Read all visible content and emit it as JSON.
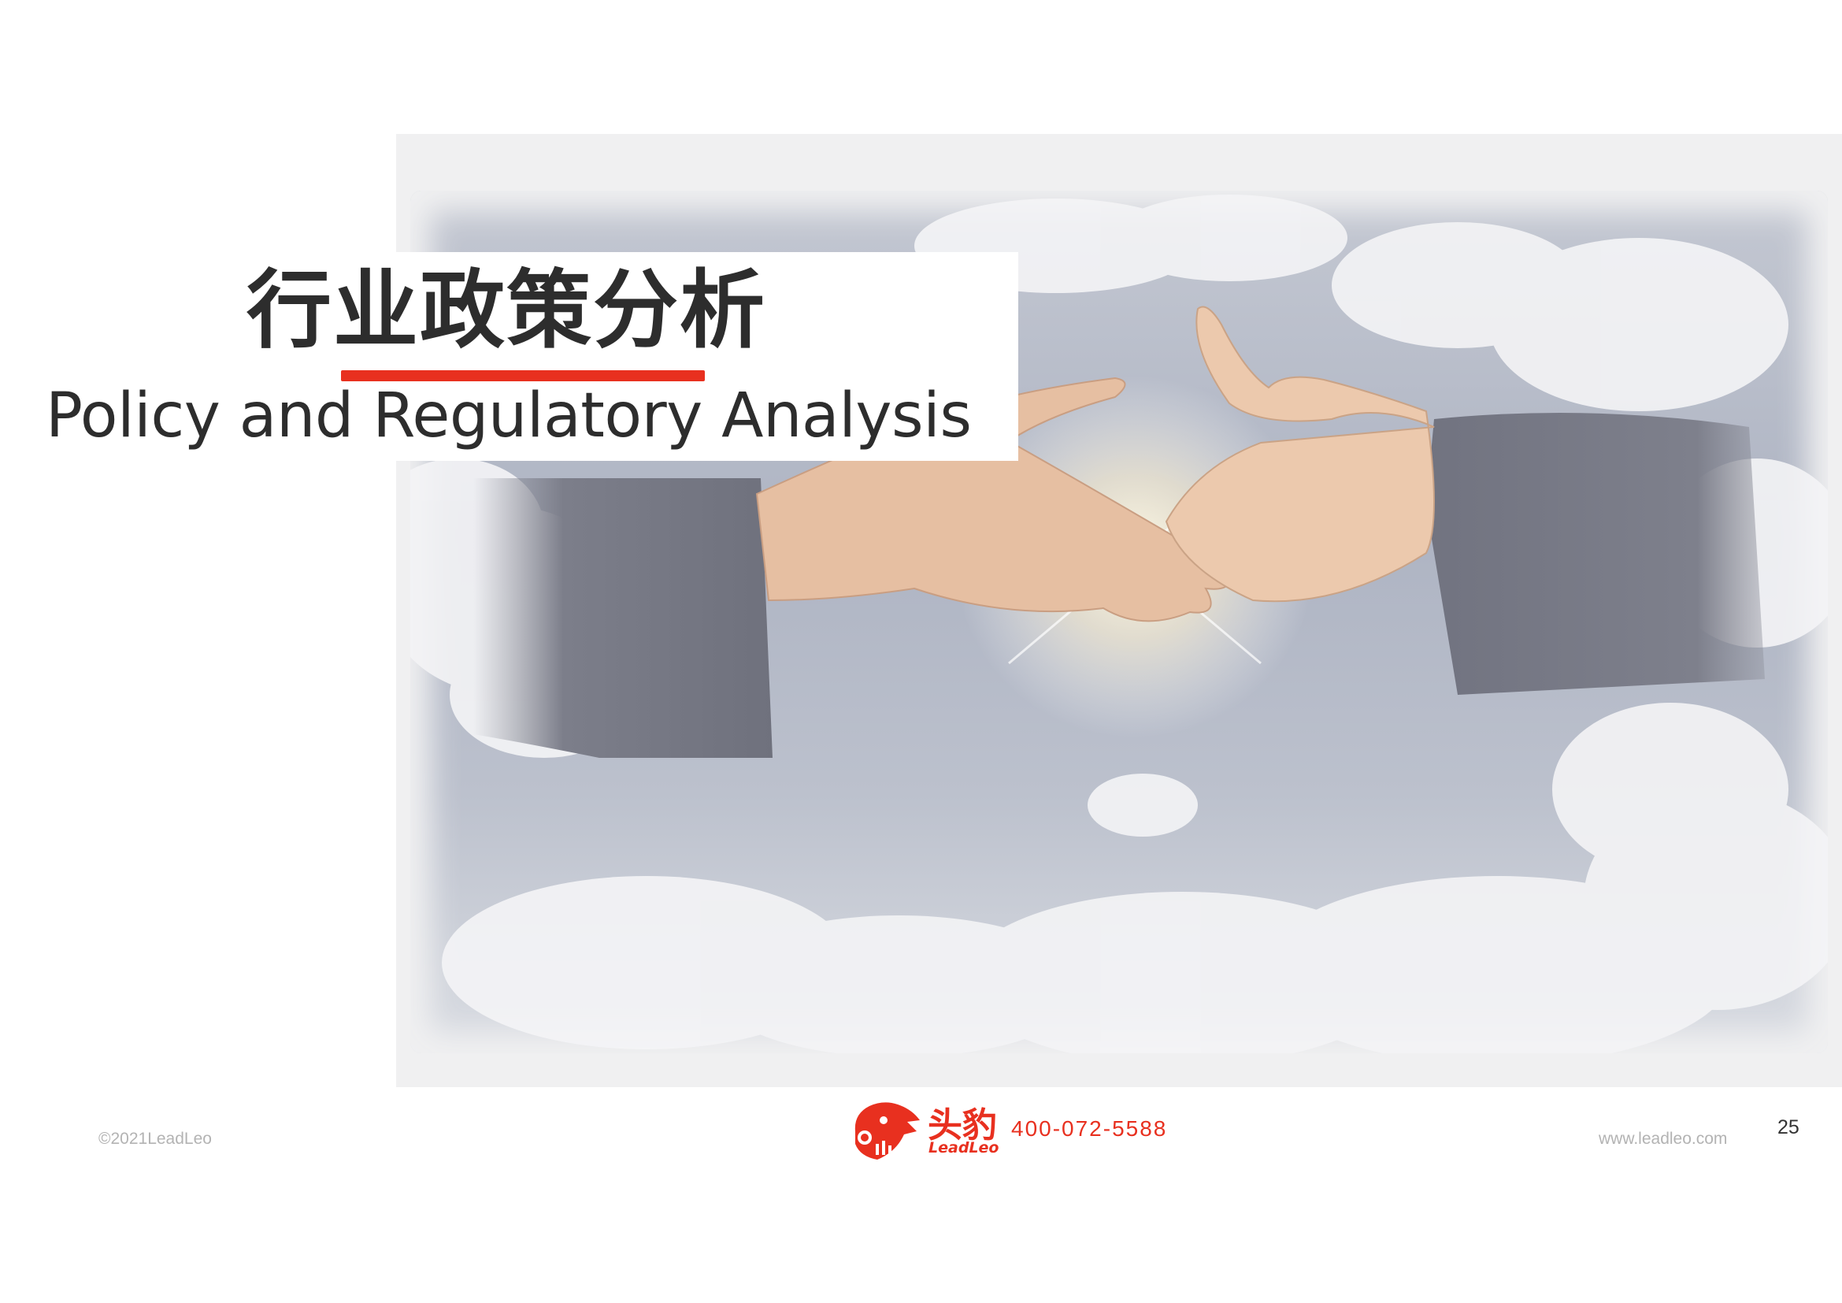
{
  "slide": {
    "title_cn": "行业政策分析",
    "title_en": "Policy and Regulatory Analysis",
    "image": "handshake-among-clouds"
  },
  "footer": {
    "copyright": "©2021LeadLeo",
    "logo_cn": "头豹",
    "logo_en": "LeadLeo",
    "phone": "400-072-5588",
    "website": "www.leadleo.com",
    "page_number": "25"
  },
  "colors": {
    "accent": "#e8301f",
    "title_text": "#2d2d2d",
    "footer_text": "#b3b3b3"
  }
}
